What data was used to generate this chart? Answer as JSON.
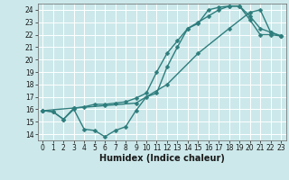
{
  "title": "",
  "xlabel": "Humidex (Indice chaleur)",
  "ylabel": "",
  "xlim": [
    -0.5,
    23.5
  ],
  "ylim": [
    13.5,
    24.5
  ],
  "xticks": [
    0,
    1,
    2,
    3,
    4,
    5,
    6,
    7,
    8,
    9,
    10,
    11,
    12,
    13,
    14,
    15,
    16,
    17,
    18,
    19,
    20,
    21,
    22,
    23
  ],
  "yticks": [
    14,
    15,
    16,
    17,
    18,
    19,
    20,
    21,
    22,
    23,
    24
  ],
  "bg_color": "#cce8ea",
  "grid_color": "#ffffff",
  "line_color": "#2e7d7d",
  "line1_x": [
    0,
    1,
    2,
    3,
    4,
    5,
    6,
    7,
    8,
    9,
    10,
    11,
    12,
    13,
    14,
    15,
    16,
    17,
    18,
    19,
    20,
    21,
    22,
    23
  ],
  "line1_y": [
    15.9,
    15.8,
    15.2,
    16.0,
    14.4,
    14.3,
    13.8,
    14.3,
    14.6,
    15.9,
    17.0,
    17.3,
    19.4,
    21.0,
    22.5,
    22.9,
    24.0,
    24.2,
    24.3,
    24.3,
    23.2,
    22.0,
    22.0,
    21.9
  ],
  "line2_x": [
    0,
    1,
    2,
    3,
    4,
    5,
    6,
    7,
    8,
    9,
    10,
    11,
    12,
    13,
    14,
    15,
    16,
    17,
    18,
    19,
    20,
    21,
    22,
    23
  ],
  "line2_y": [
    15.9,
    15.8,
    15.2,
    16.1,
    16.2,
    16.4,
    16.4,
    16.5,
    16.6,
    16.9,
    17.3,
    19.0,
    20.5,
    21.5,
    22.5,
    23.0,
    23.5,
    24.0,
    24.3,
    24.3,
    23.5,
    22.5,
    22.2,
    21.9
  ],
  "line3_x": [
    0,
    3,
    6,
    9,
    12,
    15,
    18,
    20,
    21,
    22,
    23
  ],
  "line3_y": [
    15.9,
    16.1,
    16.3,
    16.5,
    18.0,
    20.5,
    22.5,
    23.8,
    24.0,
    22.2,
    21.9
  ],
  "marker": "D",
  "markersize": 2.5,
  "linewidth": 1.0,
  "tick_fontsize": 5.5,
  "xlabel_fontsize": 7.0
}
